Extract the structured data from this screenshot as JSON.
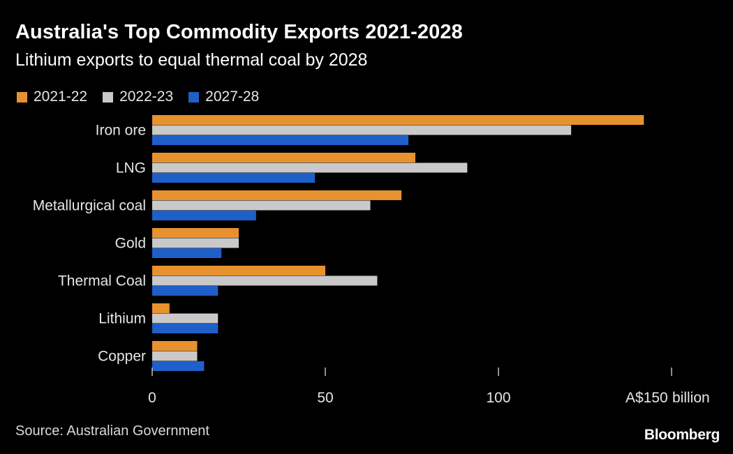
{
  "header": {
    "title": "Australia's Top Commodity Exports 2021-2028",
    "subtitle": "Lithium exports to equal thermal coal by 2028"
  },
  "footer": {
    "source": "Source: Australian Government",
    "brand": "Bloomberg"
  },
  "chart_data": {
    "type": "bar",
    "orientation": "horizontal",
    "title": "Australia's Top Commodity Exports 2021-2028",
    "subtitle": "Lithium exports to equal thermal coal by 2028",
    "categories": [
      "Iron ore",
      "LNG",
      "Metallurgical coal",
      "Gold",
      "Thermal Coal",
      "Lithium",
      "Copper"
    ],
    "series": [
      {
        "name": "2021-22",
        "color": "#e8912f",
        "values": [
          142,
          76,
          72,
          25,
          50,
          5,
          13
        ]
      },
      {
        "name": "2022-23",
        "color": "#c9c9c9",
        "values": [
          121,
          91,
          63,
          25,
          65,
          19,
          13
        ]
      },
      {
        "name": "2027-28",
        "color": "#1f5fc9",
        "values": [
          74,
          47,
          30,
          20,
          19,
          19,
          15
        ]
      }
    ],
    "xlim": [
      0,
      150
    ],
    "xticks": [
      0,
      50,
      100,
      150
    ],
    "xtick_labels": [
      "0",
      "50",
      "100",
      "A$150"
    ],
    "xunit": "billion",
    "grid": false,
    "legend_position": "top-left"
  }
}
